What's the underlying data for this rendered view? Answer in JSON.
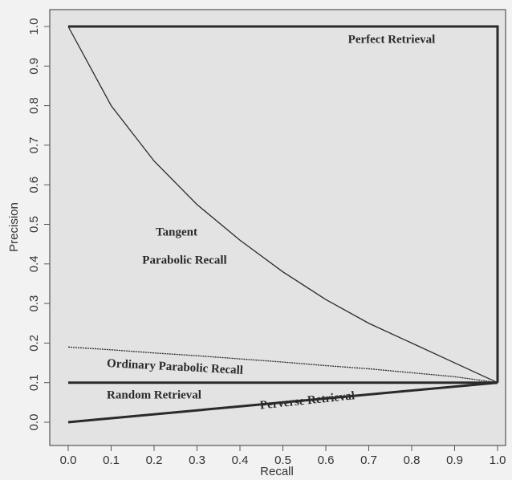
{
  "chart_data": {
    "type": "line",
    "xlabel": "Recall",
    "ylabel": "Precision",
    "xlim": [
      0,
      1
    ],
    "ylim": [
      0,
      1
    ],
    "xticks": [
      {
        "value": 0,
        "label": "0.0"
      },
      0.1,
      0.2,
      0.3,
      0.4,
      0.5,
      0.6,
      0.7,
      0.8,
      0.9,
      {
        "value": 1,
        "label": "1.0"
      }
    ],
    "yticks": [
      {
        "value": 0,
        "label": "0.0"
      },
      0.1,
      0.2,
      0.3,
      0.4,
      0.5,
      0.6,
      0.7,
      0.8,
      0.9,
      {
        "value": 1,
        "label": "1.0"
      }
    ],
    "annotations": [
      "Perfect Retrieval",
      "Tangent",
      "Parabolic Recall",
      "Ordinary Parabolic Recall",
      "Random Retrieval",
      "Perverse Retrieval"
    ],
    "series": [
      {
        "color": "#2a2a2a",
        "x": [
          0,
          1,
          1
        ],
        "values": [
          1,
          1,
          0.1
        ]
      },
      {
        "color": "#2a2a2a",
        "x": [
          0,
          0.1,
          0.2,
          0.3,
          0.4,
          0.5,
          0.6,
          0.7,
          0.8,
          0.9,
          1
        ],
        "values": [
          1,
          0.8,
          0.66,
          0.55,
          0.46,
          0.38,
          0.31,
          0.25,
          0.2,
          0.15,
          0.1
        ]
      },
      {
        "color": "#2a2a2a",
        "x": [
          0,
          0.1,
          0.2,
          0.3,
          0.4,
          0.5,
          0.6,
          0.7,
          0.8,
          0.9,
          1
        ],
        "values": [
          0.19,
          0.183,
          0.175,
          0.168,
          0.16,
          0.152,
          0.143,
          0.135,
          0.125,
          0.115,
          0.1
        ]
      },
      {
        "color": "#2a2a2a",
        "x": [
          0,
          1
        ],
        "values": [
          0.1,
          0.1
        ]
      },
      {
        "color": "#2a2a2a",
        "x": [
          0,
          1
        ],
        "values": [
          0,
          0.1
        ]
      }
    ]
  }
}
